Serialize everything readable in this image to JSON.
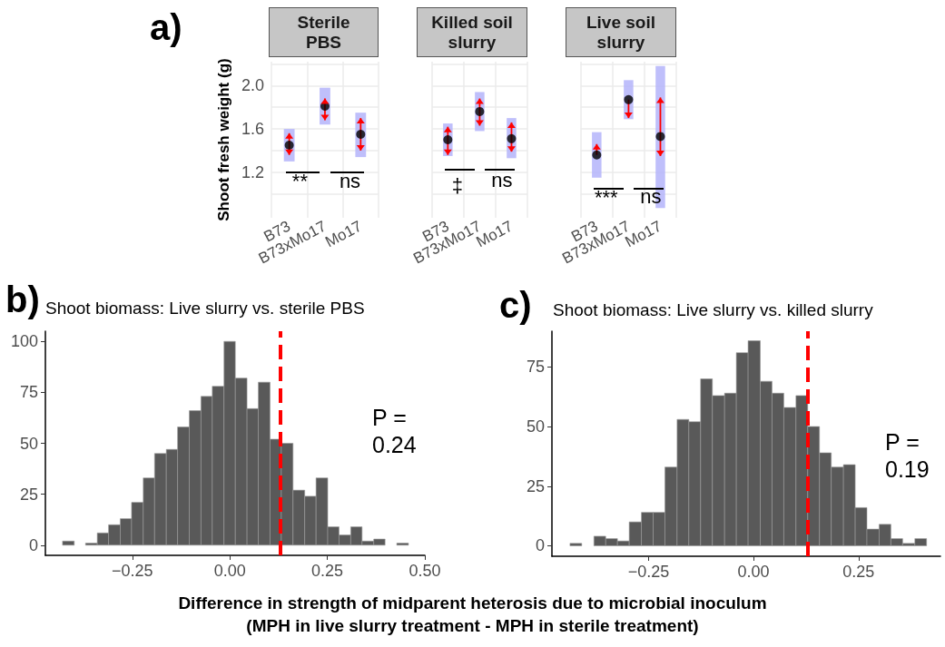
{
  "chart_data": [
    {
      "type": "scatter",
      "title": "Sterile\nPBS",
      "ylabel": "Shoot fresh weight (g)",
      "categories": [
        "B73",
        "B73xMo17",
        "Mo17"
      ],
      "ylim": [
        0.78,
        2.22
      ],
      "yticks": [
        {
          "value": 1.0,
          "label": null
        },
        1.2,
        {
          "value": 1.4,
          "label": null
        },
        1.6,
        {
          "value": 1.8,
          "label": null
        },
        {
          "value": 2,
          "label": "2.0"
        },
        {
          "value": 2.2,
          "label": null
        }
      ],
      "grid": true,
      "series": [
        {
          "type": "bar",
          "color": "#b4b4fa",
          "base": [
            1.3,
            1.64,
            1.34
          ],
          "values": [
            0.3,
            0.34,
            0.41
          ]
        },
        {
          "type": "scatter",
          "color": "#000000",
          "values": [
            1.45,
            1.81,
            1.55
          ],
          "errors": [
            [
              1.36,
              1.56
            ],
            [
              1.68,
              1.88
            ],
            [
              1.4,
              1.7
            ]
          ]
        }
      ],
      "annotations": [
        "a)",
        "**",
        "ns"
      ]
    },
    {
      "type": "scatter",
      "title": "Killed soil\nslurry",
      "categories": [
        "B73",
        "B73xMo17",
        "Mo17"
      ],
      "ylim": [
        0.78,
        2.22
      ],
      "yticks": [
        {
          "value": 1.0,
          "label": null
        },
        1.2,
        {
          "value": 1.4,
          "label": null
        },
        1.6,
        {
          "value": 1.8,
          "label": null
        },
        2,
        {
          "value": 2.2,
          "label": null
        }
      ],
      "grid": true,
      "tick_labels": "x",
      "series": [
        {
          "type": "bar",
          "color": "#b4b4fa",
          "base": [
            1.35,
            1.58,
            1.33
          ],
          "values": [
            0.3,
            0.36,
            0.37
          ]
        },
        {
          "type": "scatter",
          "color": "#000000",
          "values": [
            1.5,
            1.76,
            1.51
          ],
          "errors": [
            [
              1.36,
              1.62
            ],
            [
              1.63,
              1.88
            ],
            [
              1.39,
              1.66
            ]
          ]
        }
      ],
      "annotations": [
        "‡",
        "ns"
      ]
    },
    {
      "type": "scatter",
      "title": "Live soil\nslurry",
      "categories": [
        "B73",
        "B73xMo17",
        "Mo17"
      ],
      "ylim": [
        0.78,
        2.22
      ],
      "yticks": [
        {
          "value": 1.0,
          "label": null
        },
        1.2,
        {
          "value": 1.4,
          "label": null
        },
        1.6,
        {
          "value": 1.8,
          "label": null
        },
        2,
        {
          "value": 2.2,
          "label": null
        }
      ],
      "grid": true,
      "tick_labels": "x",
      "series": [
        {
          "type": "bar",
          "color": "#b4b4fa",
          "base": [
            1.15,
            1.69,
            0.87
          ],
          "values": [
            0.42,
            0.36,
            1.31
          ]
        },
        {
          "type": "scatter",
          "color": "#000000",
          "values": [
            1.36,
            1.87,
            1.53
          ],
          "errors": [
            [
              1.36,
              1.46
            ],
            [
              1.7,
              1.87
            ],
            [
              1.35,
              1.89
            ]
          ]
        }
      ],
      "annotations": [
        "***",
        "ns"
      ]
    },
    {
      "type": "histogram",
      "title": "Shoot biomass: Live slurry vs. sterile PBS",
      "color": "#595959",
      "bins": [
        -0.429,
        -0.399,
        -0.37,
        -0.34,
        -0.311,
        -0.281,
        -0.252,
        -0.222,
        -0.193,
        -0.163,
        -0.134,
        -0.104,
        -0.074,
        -0.045,
        -0.015,
        0.014,
        0.044,
        0.073,
        0.103,
        0.132,
        0.162,
        0.192,
        0.221,
        0.251,
        0.28,
        0.31,
        0.339,
        0.369,
        0.398,
        0.428,
        0.458
      ],
      "values": [
        2,
        0,
        1,
        6,
        10,
        13,
        21,
        33,
        45,
        47,
        58,
        66,
        73,
        78,
        100,
        82,
        67,
        80,
        52,
        50,
        27,
        24,
        33,
        9,
        5,
        9,
        2,
        3,
        0,
        1
      ],
      "xlim": [
        -0.473,
        0.5
      ],
      "xticks": [
        {
          "value": -0.25,
          "label": "−0.25"
        },
        {
          "value": 0,
          "label": "0.00"
        },
        0.25,
        {
          "value": 0.5,
          "label": "0.50"
        }
      ],
      "ylim": [
        -5,
        105
      ],
      "yticks": [
        0,
        25,
        50,
        75,
        100
      ],
      "ref_lines": [
        {
          "axis": "x",
          "value": 0.13,
          "color": "#ff0000",
          "line_style": "dashed"
        }
      ],
      "annotations": [
        "b)",
        "P =\n0.24"
      ]
    },
    {
      "type": "histogram",
      "title": "Shoot biomass: Live slurry vs. killed slurry",
      "color": "#595959",
      "xlabel": "Difference in strength of midparent heterosis due to microbial inoculum\n(MPH in live slurry treatment - MPH in sterile treatment)",
      "bins": [
        -0.437,
        -0.409,
        -0.38,
        -0.352,
        -0.324,
        -0.296,
        -0.267,
        -0.239,
        -0.211,
        -0.182,
        -0.154,
        -0.126,
        -0.098,
        -0.069,
        -0.041,
        -0.013,
        0.016,
        0.044,
        0.072,
        0.101,
        0.129,
        0.157,
        0.185,
        0.214,
        0.242,
        0.27,
        0.299,
        0.327,
        0.355,
        0.384,
        0.412
      ],
      "values": [
        1,
        0,
        4,
        3,
        2,
        10,
        14,
        14,
        33,
        53,
        52,
        70,
        63,
        64,
        81,
        86,
        69,
        64,
        58,
        63,
        50,
        39,
        33,
        34,
        16,
        7,
        9,
        3,
        1,
        3
      ],
      "xlim": [
        -0.48,
        0.445
      ],
      "xticks": [
        {
          "value": -0.25,
          "label": "−0.25"
        },
        {
          "value": 0,
          "label": "0.00"
        },
        0.25
      ],
      "ylim": [
        -4.4,
        90
      ],
      "yticks": [
        0,
        25,
        50,
        75
      ],
      "ref_lines": [
        {
          "axis": "x",
          "value": 0.13,
          "color": "#ff0000",
          "line_style": "dashed"
        }
      ],
      "annotations": [
        "c)",
        "P =\n0.19"
      ]
    }
  ]
}
